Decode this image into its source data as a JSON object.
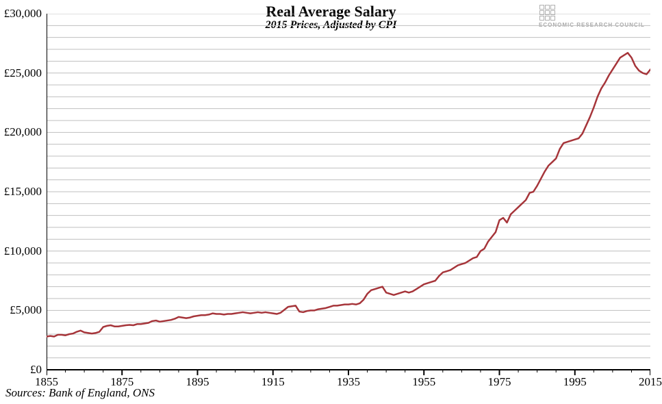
{
  "chart": {
    "type": "line",
    "title": "Real Average Salary",
    "subtitle": "2015 Prices, Adjusted by CPI",
    "source_label": "Sources: Bank of England, ONS",
    "logo_text": "ECONOMIC RESEARCH COUNCIL",
    "background_color": "#ffffff",
    "line_color": "#a6353a",
    "line_width": 2.5,
    "grid_color": "#bfbfbf",
    "grid_width": 1,
    "axis_color": "#000000",
    "axis_width": 2,
    "title_fontsize": 22,
    "subtitle_fontsize": 16,
    "tick_fontsize": 17,
    "source_fontsize": 17,
    "x": {
      "min": 1855,
      "max": 2015,
      "ticks": [
        1855,
        1875,
        1895,
        1915,
        1935,
        1955,
        1975,
        1995,
        2015
      ],
      "minor_step": 5
    },
    "y": {
      "min": 0,
      "max": 30000,
      "ticks": [
        0,
        5000,
        10000,
        15000,
        20000,
        25000,
        30000
      ],
      "tick_labels": [
        "£0",
        "£5,000",
        "£10,000",
        "£15,000",
        "£20,000",
        "£25,000",
        "£30,000"
      ],
      "minor_step": 1000
    },
    "series": {
      "name": "Real average salary",
      "points": [
        [
          1855,
          2800
        ],
        [
          1856,
          2850
        ],
        [
          1857,
          2800
        ],
        [
          1858,
          2950
        ],
        [
          1859,
          2950
        ],
        [
          1860,
          2900
        ],
        [
          1861,
          3000
        ],
        [
          1862,
          3050
        ],
        [
          1863,
          3200
        ],
        [
          1864,
          3300
        ],
        [
          1865,
          3150
        ],
        [
          1866,
          3100
        ],
        [
          1867,
          3050
        ],
        [
          1868,
          3100
        ],
        [
          1869,
          3200
        ],
        [
          1870,
          3600
        ],
        [
          1871,
          3700
        ],
        [
          1872,
          3750
        ],
        [
          1873,
          3650
        ],
        [
          1874,
          3650
        ],
        [
          1875,
          3700
        ],
        [
          1876,
          3750
        ],
        [
          1877,
          3780
        ],
        [
          1878,
          3750
        ],
        [
          1879,
          3850
        ],
        [
          1880,
          3850
        ],
        [
          1881,
          3900
        ],
        [
          1882,
          3950
        ],
        [
          1883,
          4100
        ],
        [
          1884,
          4150
        ],
        [
          1885,
          4050
        ],
        [
          1886,
          4100
        ],
        [
          1887,
          4150
        ],
        [
          1888,
          4200
        ],
        [
          1889,
          4300
        ],
        [
          1890,
          4450
        ],
        [
          1891,
          4400
        ],
        [
          1892,
          4350
        ],
        [
          1893,
          4400
        ],
        [
          1894,
          4500
        ],
        [
          1895,
          4550
        ],
        [
          1896,
          4600
        ],
        [
          1897,
          4600
        ],
        [
          1898,
          4650
        ],
        [
          1899,
          4750
        ],
        [
          1900,
          4700
        ],
        [
          1901,
          4700
        ],
        [
          1902,
          4650
        ],
        [
          1903,
          4700
        ],
        [
          1904,
          4700
        ],
        [
          1905,
          4750
        ],
        [
          1906,
          4800
        ],
        [
          1907,
          4850
        ],
        [
          1908,
          4800
        ],
        [
          1909,
          4750
        ],
        [
          1910,
          4800
        ],
        [
          1911,
          4850
        ],
        [
          1912,
          4800
        ],
        [
          1913,
          4850
        ],
        [
          1914,
          4800
        ],
        [
          1915,
          4750
        ],
        [
          1916,
          4700
        ],
        [
          1917,
          4800
        ],
        [
          1918,
          5050
        ],
        [
          1919,
          5300
        ],
        [
          1920,
          5350
        ],
        [
          1921,
          5400
        ],
        [
          1922,
          4900
        ],
        [
          1923,
          4850
        ],
        [
          1924,
          4950
        ],
        [
          1925,
          5000
        ],
        [
          1926,
          5000
        ],
        [
          1927,
          5100
        ],
        [
          1928,
          5150
        ],
        [
          1929,
          5200
        ],
        [
          1930,
          5300
        ],
        [
          1931,
          5400
        ],
        [
          1932,
          5400
        ],
        [
          1933,
          5450
        ],
        [
          1934,
          5500
        ],
        [
          1935,
          5500
        ],
        [
          1936,
          5550
        ],
        [
          1937,
          5500
        ],
        [
          1938,
          5600
        ],
        [
          1939,
          5900
        ],
        [
          1940,
          6400
        ],
        [
          1941,
          6700
        ],
        [
          1942,
          6800
        ],
        [
          1943,
          6900
        ],
        [
          1944,
          7000
        ],
        [
          1945,
          6500
        ],
        [
          1946,
          6400
        ],
        [
          1947,
          6300
        ],
        [
          1948,
          6400
        ],
        [
          1949,
          6500
        ],
        [
          1950,
          6600
        ],
        [
          1951,
          6500
        ],
        [
          1952,
          6600
        ],
        [
          1953,
          6800
        ],
        [
          1954,
          7000
        ],
        [
          1955,
          7200
        ],
        [
          1956,
          7300
        ],
        [
          1957,
          7400
        ],
        [
          1958,
          7500
        ],
        [
          1959,
          7900
        ],
        [
          1960,
          8200
        ],
        [
          1961,
          8300
        ],
        [
          1962,
          8400
        ],
        [
          1963,
          8600
        ],
        [
          1964,
          8800
        ],
        [
          1965,
          8900
        ],
        [
          1966,
          9000
        ],
        [
          1967,
          9200
        ],
        [
          1968,
          9400
        ],
        [
          1969,
          9500
        ],
        [
          1970,
          10000
        ],
        [
          1971,
          10200
        ],
        [
          1972,
          10800
        ],
        [
          1973,
          11200
        ],
        [
          1974,
          11600
        ],
        [
          1975,
          12600
        ],
        [
          1976,
          12800
        ],
        [
          1977,
          12400
        ],
        [
          1978,
          13100
        ],
        [
          1979,
          13400
        ],
        [
          1980,
          13700
        ],
        [
          1981,
          14000
        ],
        [
          1982,
          14300
        ],
        [
          1983,
          14900
        ],
        [
          1984,
          15000
        ],
        [
          1985,
          15500
        ],
        [
          1986,
          16100
        ],
        [
          1987,
          16700
        ],
        [
          1988,
          17200
        ],
        [
          1989,
          17500
        ],
        [
          1990,
          17800
        ],
        [
          1991,
          18600
        ],
        [
          1992,
          19100
        ],
        [
          1993,
          19200
        ],
        [
          1994,
          19300
        ],
        [
          1995,
          19400
        ],
        [
          1996,
          19500
        ],
        [
          1997,
          19900
        ],
        [
          1998,
          20600
        ],
        [
          1999,
          21300
        ],
        [
          2000,
          22100
        ],
        [
          2001,
          23000
        ],
        [
          2002,
          23700
        ],
        [
          2003,
          24200
        ],
        [
          2004,
          24800
        ],
        [
          2005,
          25300
        ],
        [
          2006,
          25800
        ],
        [
          2007,
          26300
        ],
        [
          2008,
          26500
        ],
        [
          2009,
          26700
        ],
        [
          2010,
          26300
        ],
        [
          2011,
          25600
        ],
        [
          2012,
          25200
        ],
        [
          2013,
          25000
        ],
        [
          2014,
          24900
        ],
        [
          2015,
          25300
        ]
      ]
    }
  }
}
